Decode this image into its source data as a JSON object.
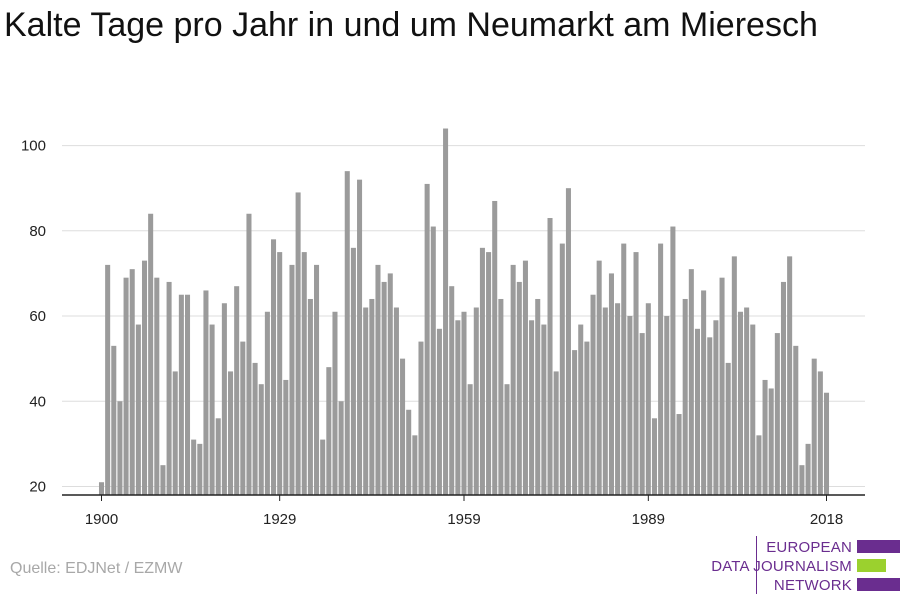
{
  "title": "Kalte Tage pro Jahr in und um Neumarkt am Mieresch",
  "source": "Quelle: EDJNet / EZMW",
  "logo": {
    "lines": [
      "EUROPEAN",
      "DATA JOURNALISM",
      "NETWORK"
    ],
    "colors": {
      "primary": "#6a2d8f",
      "accent": "#9bd12e"
    }
  },
  "colors": {
    "bar": "#9b9b9b",
    "grid": "#dddddd",
    "axis": "#222222"
  },
  "chart_data": {
    "type": "bar",
    "x_start": 1900,
    "x_end": 2018,
    "xticks": [
      1900,
      1929,
      1959,
      1989,
      2018
    ],
    "yticks": [
      20,
      40,
      60,
      80,
      100
    ],
    "ylim": [
      18,
      106
    ],
    "grid": true,
    "values": [
      21,
      72,
      53,
      40,
      69,
      71,
      58,
      73,
      84,
      69,
      25,
      68,
      47,
      65,
      65,
      31,
      30,
      66,
      58,
      36,
      63,
      47,
      67,
      54,
      84,
      49,
      44,
      61,
      78,
      75,
      45,
      72,
      89,
      75,
      64,
      72,
      31,
      48,
      61,
      40,
      94,
      76,
      92,
      62,
      64,
      72,
      68,
      70,
      62,
      50,
      38,
      32,
      54,
      91,
      81,
      57,
      104,
      67,
      59,
      61,
      44,
      62,
      76,
      75,
      87,
      64,
      44,
      72,
      68,
      73,
      59,
      64,
      58,
      83,
      47,
      77,
      90,
      52,
      58,
      54,
      65,
      73,
      62,
      70,
      63,
      77,
      60,
      75,
      56,
      63,
      36,
      77,
      60,
      81,
      37,
      64,
      71,
      57,
      66,
      55,
      59,
      69,
      49,
      74,
      61,
      62,
      58,
      32,
      45,
      43,
      56,
      68,
      74,
      53,
      25,
      30,
      50,
      47,
      42
    ]
  }
}
